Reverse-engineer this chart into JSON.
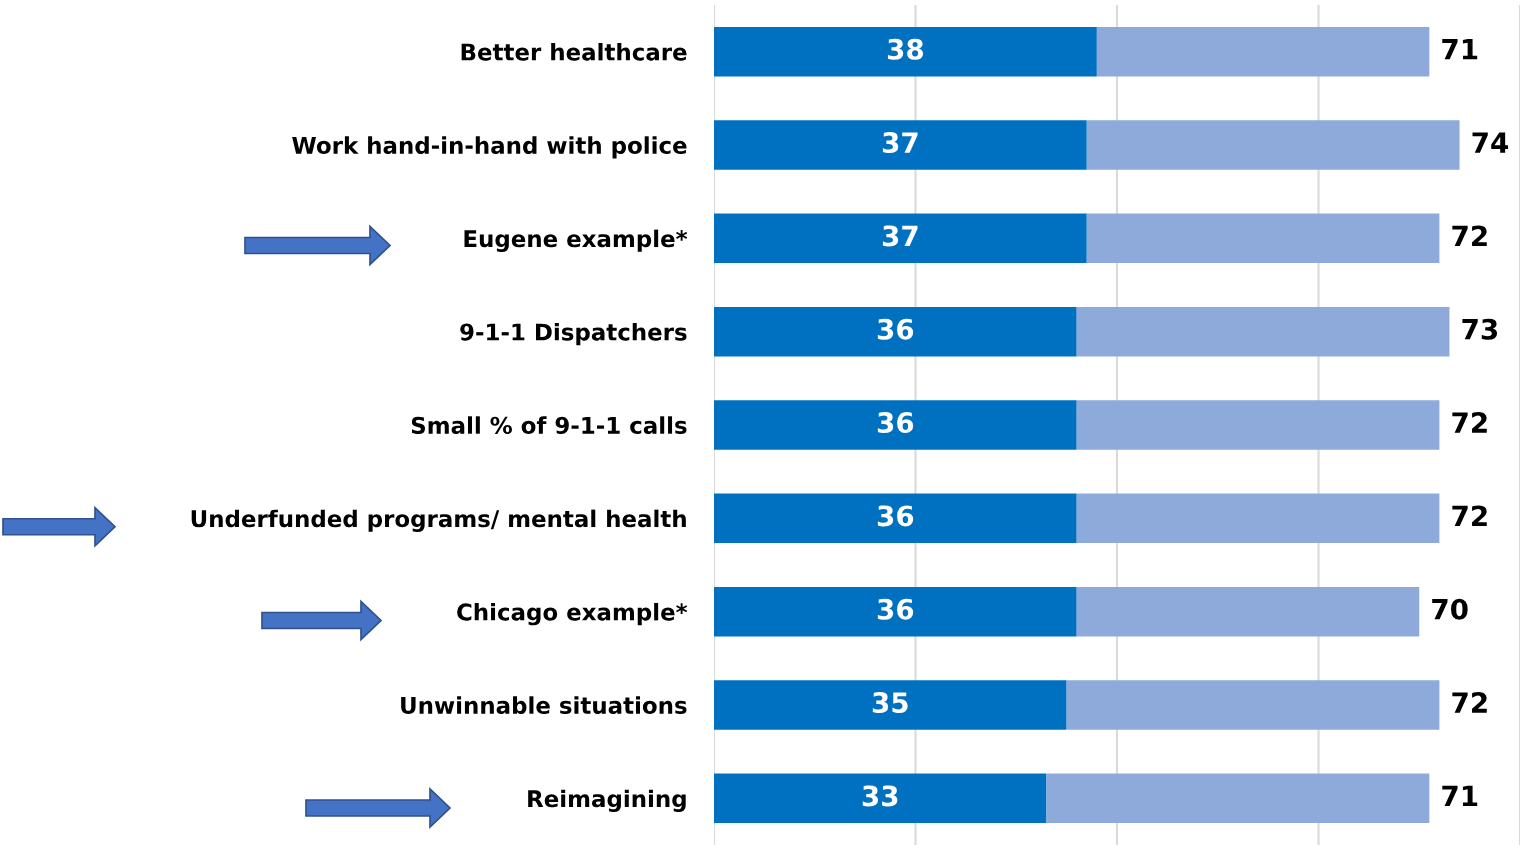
{
  "chart_data": {
    "type": "bar",
    "orientation": "horizontal",
    "stacked": true,
    "categories": [
      "Better healthcare",
      "Work hand-in-hand with police",
      "Eugene example*",
      "9-1-1 Dispatchers",
      "Small % of 9-1-1 calls",
      "Underfunded programs/ mental health",
      "Chicago example*",
      "Unwinnable situations",
      "Reimagining"
    ],
    "series": [
      {
        "color": "#0070c0",
        "values": [
          38,
          37,
          37,
          36,
          36,
          36,
          36,
          35,
          33
        ],
        "value_labels": [
          "38",
          "37",
          "37",
          "36",
          "36",
          "36",
          "36",
          "35",
          "33"
        ]
      },
      {
        "color": "#8eaadb",
        "values": [
          33,
          37,
          35,
          37,
          36,
          36,
          34,
          37,
          38
        ]
      }
    ],
    "totals": [
      "71",
      "74",
      "72",
      "73",
      "72",
      "72",
      "70",
      "72",
      "71"
    ],
    "xlim": [
      0,
      80
    ],
    "xticks": [
      {
        "value": 0,
        "label": null
      },
      {
        "value": 20,
        "label": null
      },
      {
        "value": 40,
        "label": null
      },
      {
        "value": 60,
        "label": null
      },
      {
        "value": 80,
        "label": null
      }
    ],
    "grid": "x",
    "tick_labels": "y",
    "legend": false
  }
}
